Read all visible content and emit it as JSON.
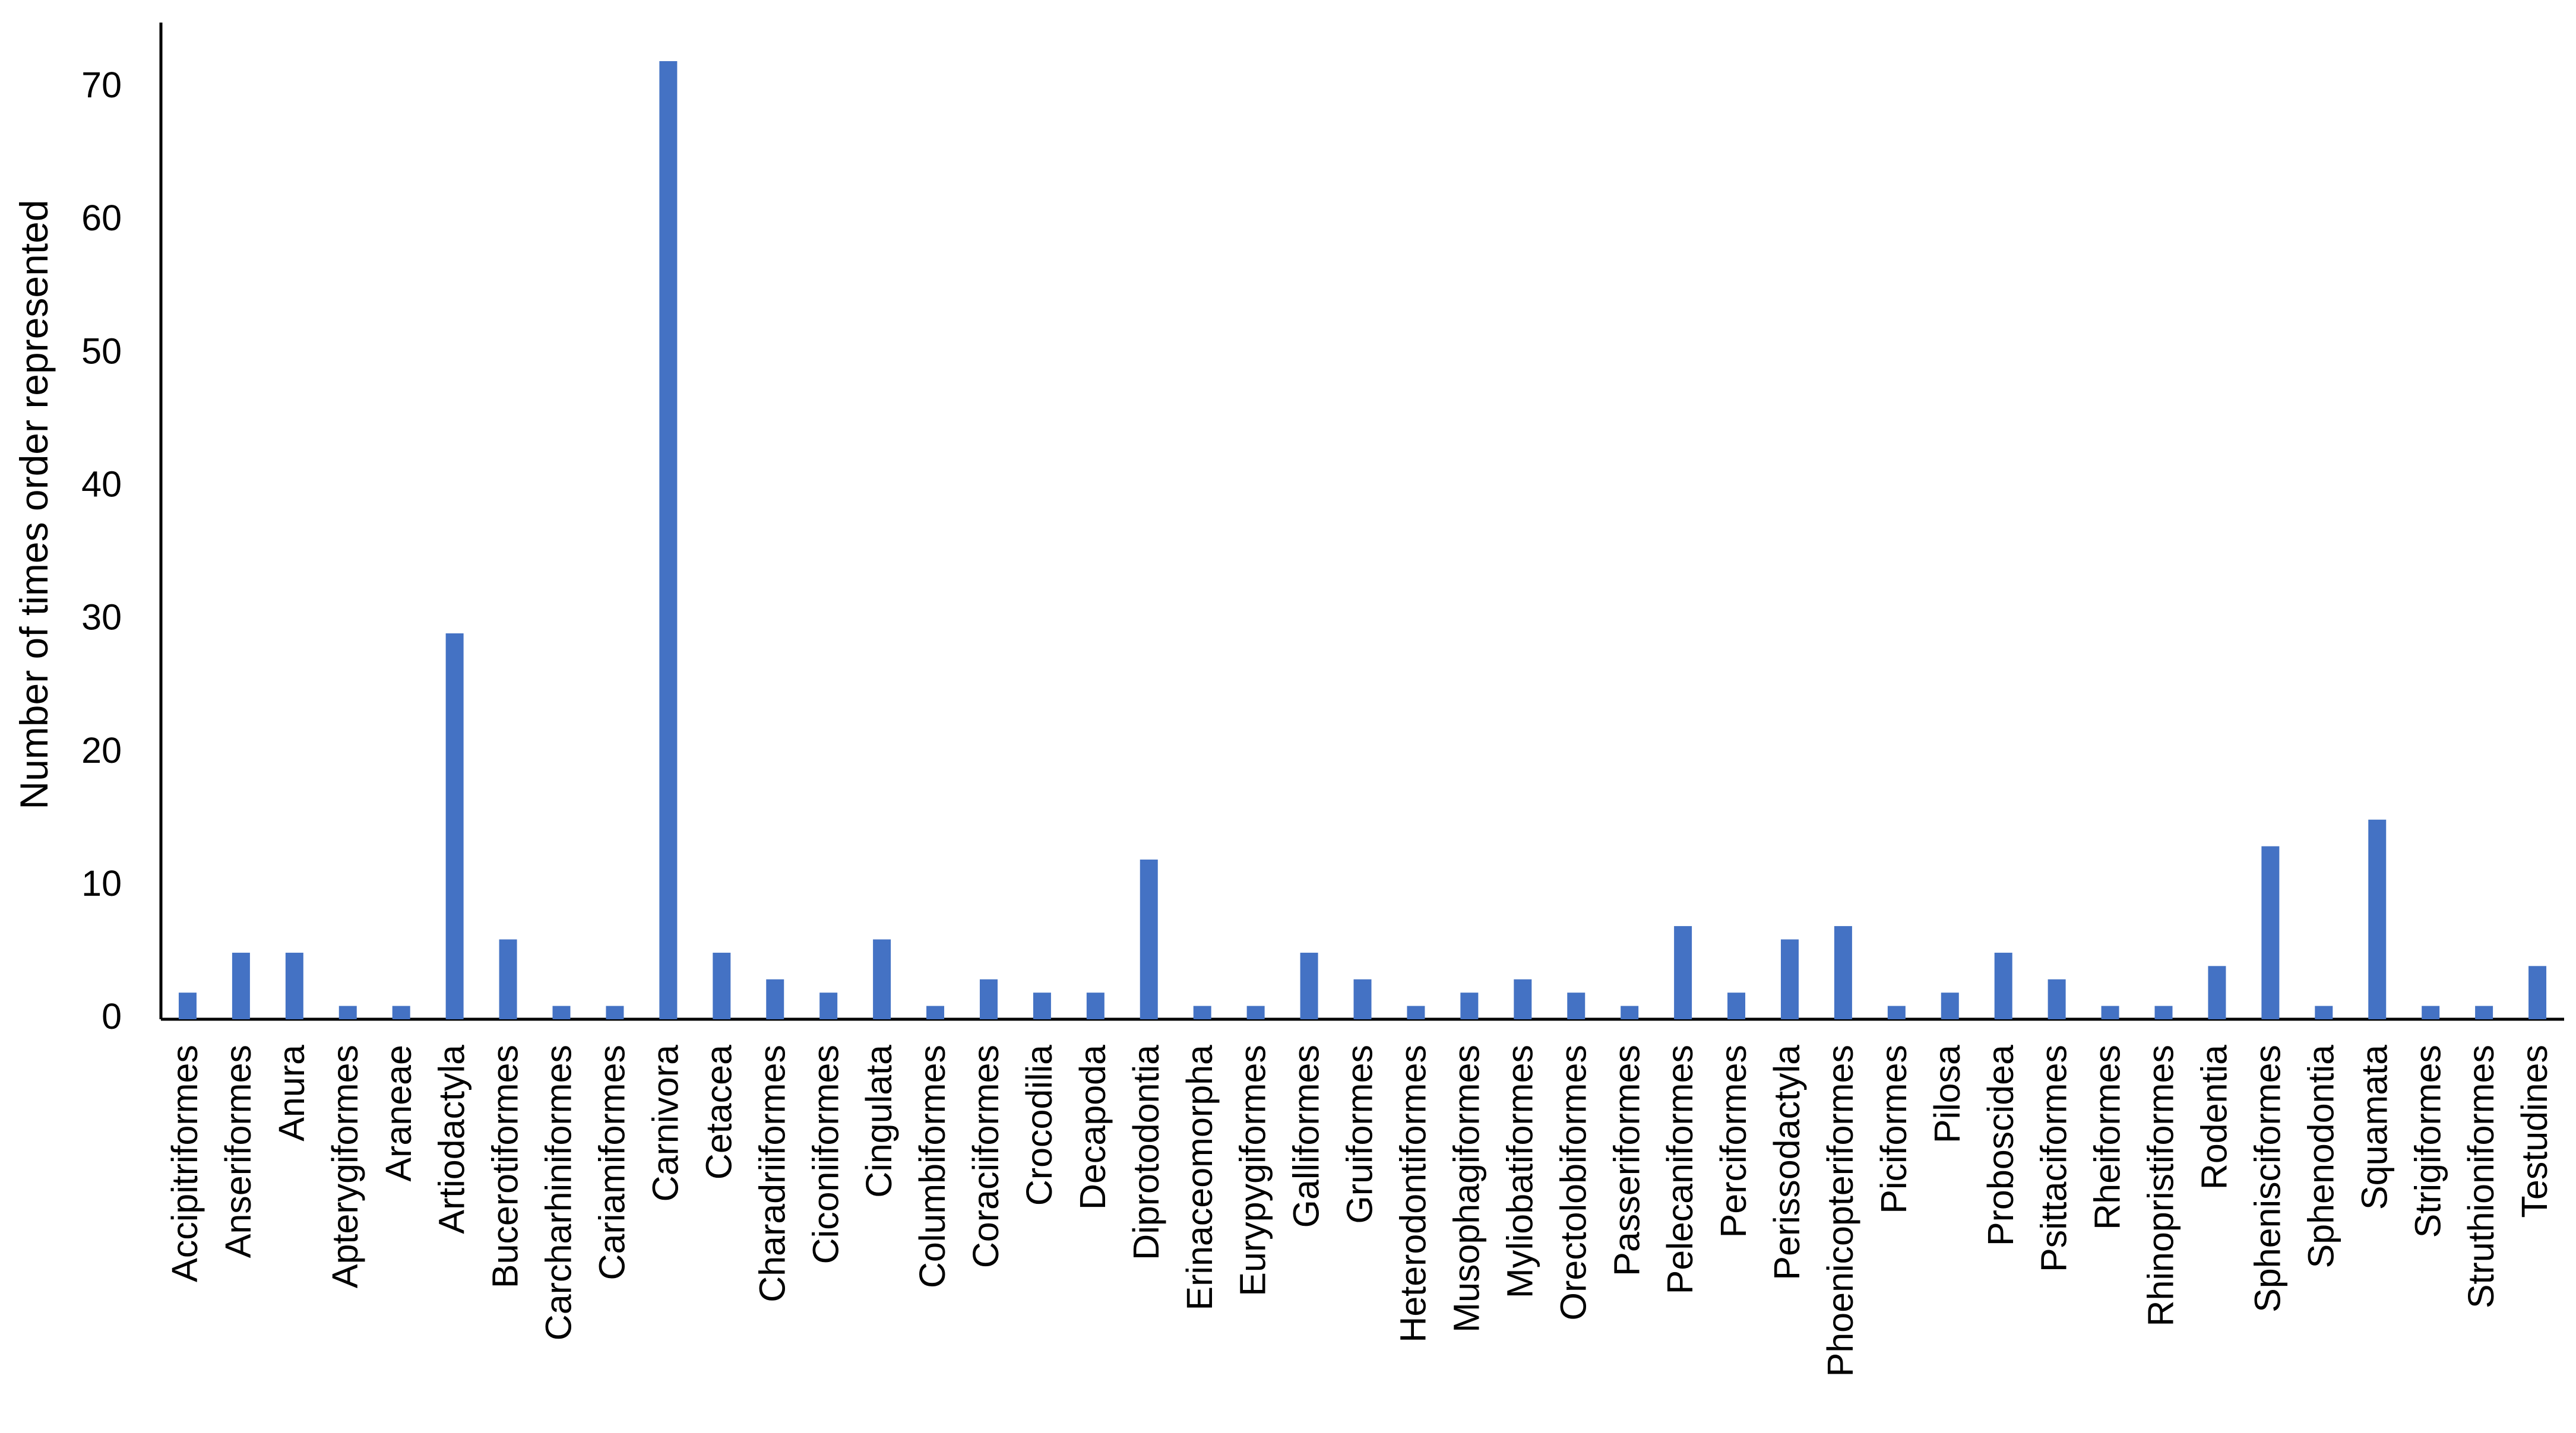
{
  "chart_data": {
    "type": "bar",
    "title": "",
    "xlabel": "",
    "ylabel": "Number of times order represented",
    "ylim": [
      0,
      75
    ],
    "yticks": [
      0,
      10,
      20,
      30,
      40,
      50,
      60,
      70
    ],
    "grid": false,
    "legend": "none",
    "bar_color": "#4472C4",
    "categories": [
      "Accipitriformes",
      "Anseriformes",
      "Anura",
      "Apterygiformes",
      "Araneae",
      "Artiodactyla",
      "Bucerotiformes",
      "Carcharhiniformes",
      "Cariamiformes",
      "Carnivora",
      "Cetacea",
      "Charadriiformes",
      "Ciconiiformes",
      "Cingulata",
      "Columbiformes",
      "Coraciiformes",
      "Crocodilia",
      "Decapoda",
      "Diprotodontia",
      "Erinaceomorpha",
      "Eurypygiformes",
      "Galliformes",
      "Gruiformes",
      "Heterodontiformes",
      "Musophagiformes",
      "Myliobatiformes",
      "Orectolobiformes",
      "Passeriformes",
      "Pelecaniformes",
      "Perciformes",
      "Perissodactyla",
      "Phoenicopteriformes",
      "Piciformes",
      "Pilosa",
      "Proboscidea",
      "Psittaciformes",
      "Rheiformes",
      "Rhinopristiformes",
      "Rodentia",
      "Sphenisciformes",
      "Sphenodontia",
      "Squamata",
      "Strigiformes",
      "Struthioniformes",
      "Testudines"
    ],
    "values": [
      2,
      5,
      5,
      1,
      1,
      29,
      6,
      1,
      1,
      72,
      5,
      3,
      2,
      6,
      1,
      3,
      2,
      2,
      12,
      1,
      1,
      5,
      3,
      1,
      2,
      3,
      2,
      1,
      7,
      2,
      6,
      7,
      1,
      2,
      5,
      3,
      1,
      1,
      4,
      13,
      1,
      15,
      1,
      1,
      4
    ]
  }
}
